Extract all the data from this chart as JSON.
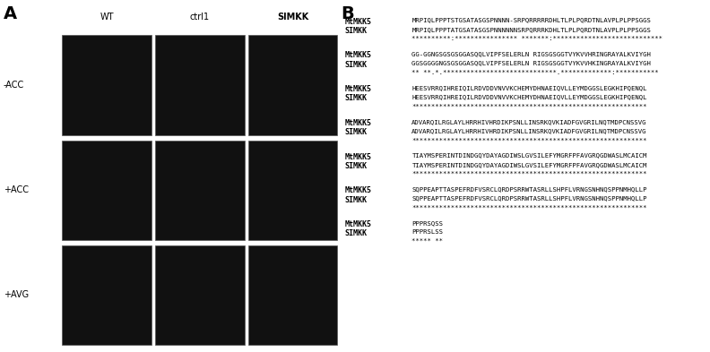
{
  "panel_A": {
    "label": "A",
    "col_labels": [
      "WT",
      "ctrl1",
      "SIMKK"
    ],
    "row_labels": [
      "-ACC",
      "+ACC",
      "+AVG"
    ],
    "bg_color": "#ffffff"
  },
  "panel_B": {
    "label": "B",
    "alignment_blocks": [
      {
        "MtMKK5": "MRPIQLPPPTSTGSATASGSPNNNN-SRPQRRRRRDHLTLPLPQRDTNLAVPLPLPPSGGS",
        "SIMKK": "MRPIQLPPPTATGSATASGSPNNNNNNSRPQRRRKDHLTLPLPQRDTNLAVPLPLPPSGGS",
        "stars": "**********:**************** *******:****************************"
      },
      {
        "MtMKK5": "GG-GGNGSGSGSGGASQQLVIPFSELERLN RIGSGSGGTVYKVVHRINGRAYALKVIYGH",
        "SIMKK": "GGSGGGGNGSGSGGASQQLVIPFSELERLN RIGSGSGGTVYKVVHKINGRAYALKVIYGH",
        "stars": "** **.*.*****************************.*************:***********"
      },
      {
        "MtMKK5": "HEESVRRQIHREIQILRDVDDVNVVKCHEMYDHNAEIQVLLEYMDGGSLEGKHIPQENQL",
        "SIMKK": "HEESVRRQIHREIQILRDVDDVNVVKCHEMYDHNAEIQVLLEYMDGGSLEGKHIPQENQL",
        "stars": "************************************************************"
      },
      {
        "MtMKK5": "ADVARQILRGLAYLHRRHIVHRDIKPSNLLINSRKQVKIADFGVGRILNQTMDPCNSSVG",
        "SIMKK": "ADVARQILRGLAYLHRRHIVHRDIKPSNLLINSRKQVKIADFGVGRILNQTMDPCNSSVG",
        "stars": "************************************************************"
      },
      {
        "MtMKK5": "TIAYMSPERINTDINDGQYDAYAGDIWSLGVSILEFYMGRFPFAVGRQGDWASLMCAICM",
        "SIMKK": "TIAYMSPERINTDINDGQYDAYAGDIWSLGVSILEFYMGRFPFAVGRQGDWASLMCAICM",
        "stars": "************************************************************"
      },
      {
        "MtMKK5": "SQPPEAPTTASPEFRDFVSRCLQRDPSRRWTASRLLSHPFLVRNGSNHNQSPPNMHQLLP",
        "SIMKK": "SQPPEAPTTASPEFRDFVSRCLQRDPSRRWTASRLLSHPFLVRNGSNHNQSPPNMHQLLP",
        "stars": "************************************************************"
      },
      {
        "MtMKK5": "PPPRSQSS",
        "SIMKK": "PPPRSLSS",
        "stars": "***** **"
      }
    ]
  },
  "figure_bg": "#ffffff",
  "text_color": "#000000",
  "seq_fontsize": 5.2,
  "label_fontsize": 6.0,
  "panel_label_fontsize": 14
}
